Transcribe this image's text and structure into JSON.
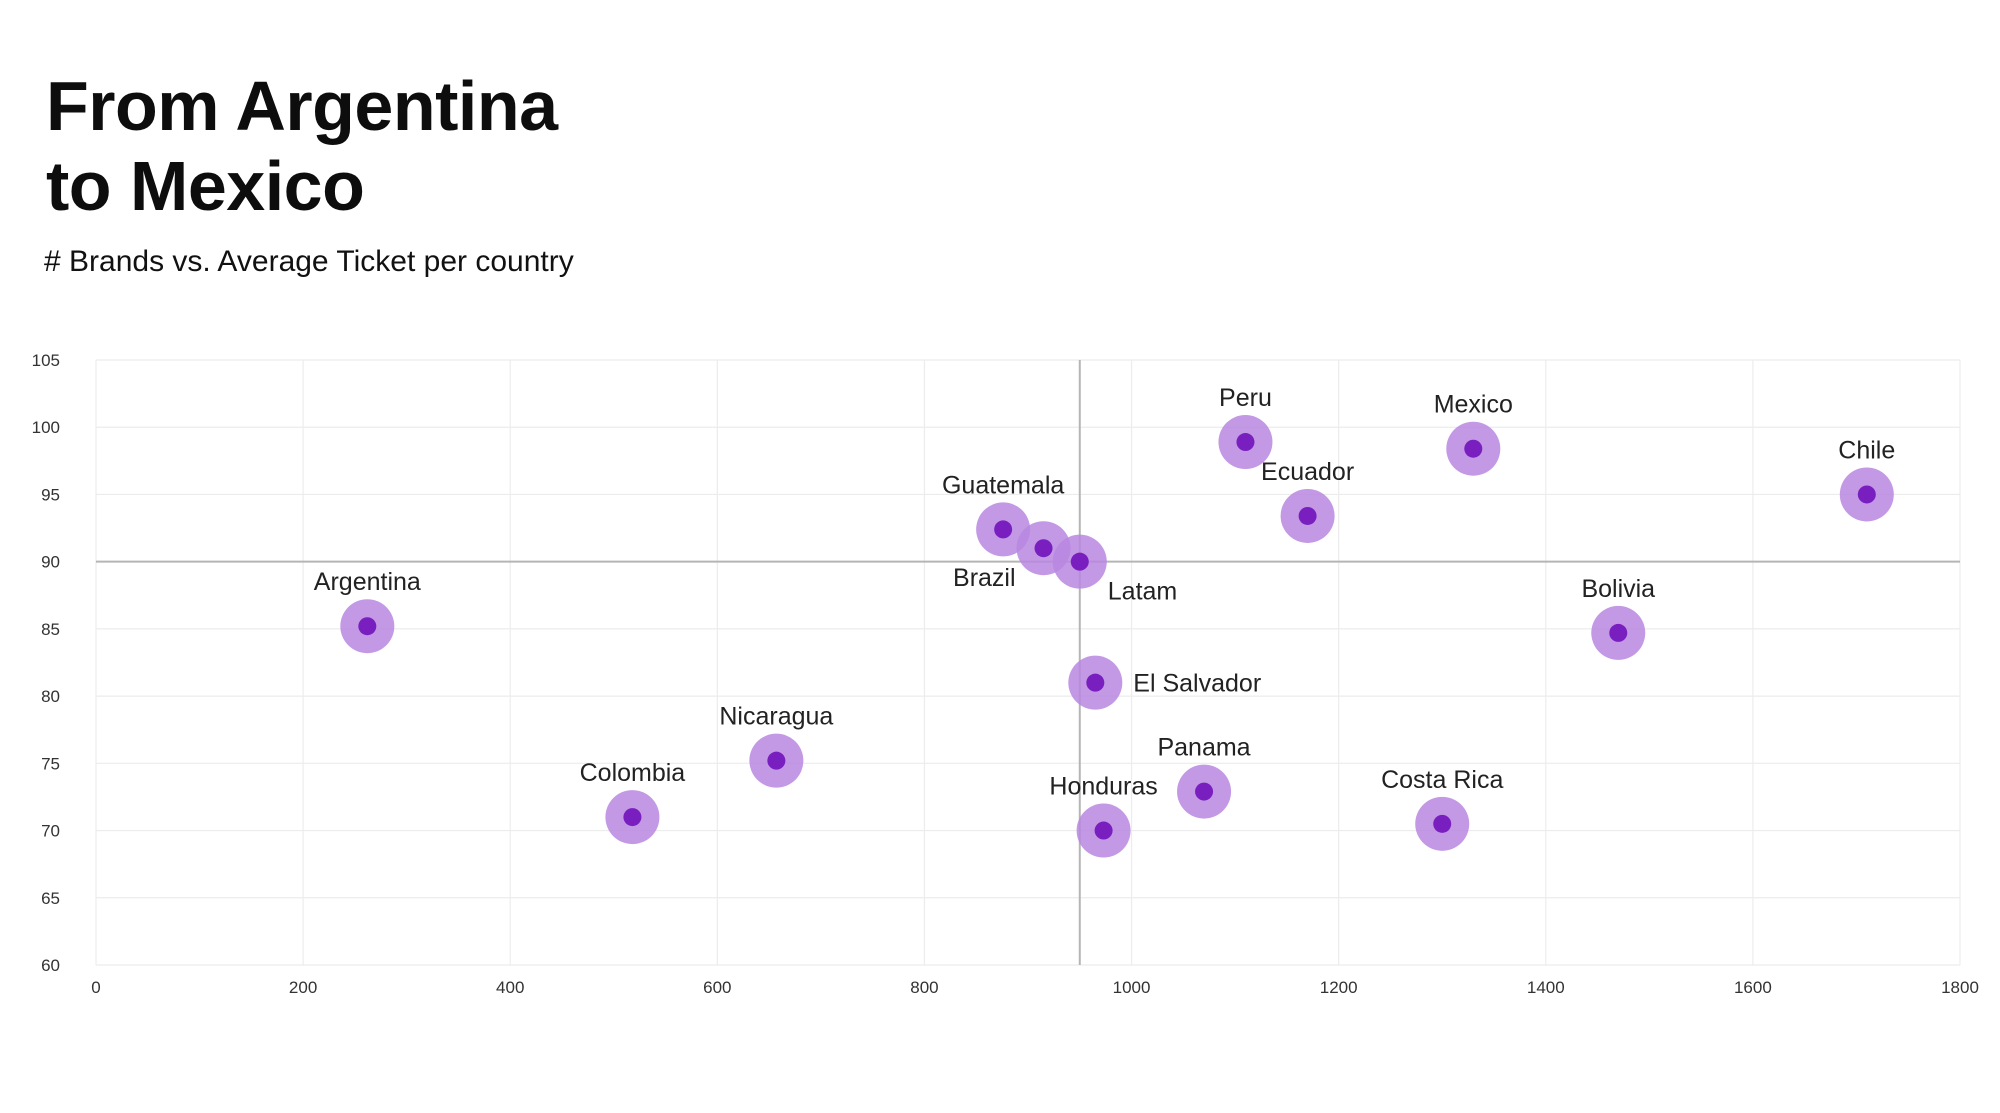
{
  "header": {
    "title_line1": "From Argentina",
    "title_line2": "to Mexico",
    "subtitle": "# Brands vs. Average Ticket per country"
  },
  "colors": {
    "halo": "#b886e0",
    "dot": "#7a1fbf",
    "grid": "#ececec",
    "reference_line": "#b5b5b5"
  },
  "chart_data": {
    "type": "scatter",
    "title": "",
    "xlabel": "",
    "ylabel": "",
    "xlim": [
      0,
      1800
    ],
    "ylim": [
      60,
      105
    ],
    "x_ticks": [
      0,
      200,
      400,
      600,
      800,
      1000,
      1200,
      1400,
      1600,
      1800
    ],
    "y_ticks": [
      60,
      65,
      70,
      75,
      80,
      85,
      90,
      95,
      100,
      105
    ],
    "grid": true,
    "reference_lines": {
      "x": 950,
      "y": 90
    },
    "points": [
      {
        "label": "Argentina",
        "x": 262,
        "y": 85.2,
        "label_pos": "above"
      },
      {
        "label": "Colombia",
        "x": 518,
        "y": 71.0,
        "label_pos": "above"
      },
      {
        "label": "Nicaragua",
        "x": 657,
        "y": 75.2,
        "label_pos": "above"
      },
      {
        "label": "Guatemala",
        "x": 876,
        "y": 92.4,
        "label_pos": "above"
      },
      {
        "label": "Brazil",
        "x": 915,
        "y": 91.0,
        "label_pos": "below-left"
      },
      {
        "label": "Latam",
        "x": 950,
        "y": 90.0,
        "label_pos": "below-right"
      },
      {
        "label": "El Salvador",
        "x": 965,
        "y": 81.0,
        "label_pos": "right"
      },
      {
        "label": "Honduras",
        "x": 973,
        "y": 70.0,
        "label_pos": "above"
      },
      {
        "label": "Panama",
        "x": 1070,
        "y": 72.9,
        "label_pos": "above"
      },
      {
        "label": "Peru",
        "x": 1110,
        "y": 98.9,
        "label_pos": "above"
      },
      {
        "label": "Ecuador",
        "x": 1170,
        "y": 93.4,
        "label_pos": "above"
      },
      {
        "label": "Costa Rica",
        "x": 1300,
        "y": 70.5,
        "label_pos": "above"
      },
      {
        "label": "Mexico",
        "x": 1330,
        "y": 98.4,
        "label_pos": "above"
      },
      {
        "label": "Bolivia",
        "x": 1470,
        "y": 84.7,
        "label_pos": "above"
      },
      {
        "label": "Chile",
        "x": 1710,
        "y": 95.0,
        "label_pos": "above"
      }
    ]
  }
}
